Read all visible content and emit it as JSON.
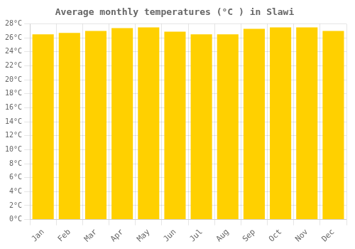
{
  "chart_data": {
    "type": "bar",
    "title": "Average monthly temperatures (°C ) in Slawi",
    "categories": [
      "Jan",
      "Feb",
      "Mar",
      "Apr",
      "May",
      "Jun",
      "Jul",
      "Aug",
      "Sep",
      "Oct",
      "Nov",
      "Dec"
    ],
    "values": [
      26.5,
      26.7,
      27.0,
      27.4,
      27.5,
      26.9,
      26.5,
      26.5,
      27.3,
      27.5,
      27.5,
      27.0
    ],
    "color": "#FFD000",
    "ylim": [
      0,
      28
    ],
    "yticks": [
      {
        "value": 0,
        "label": "0°C"
      },
      {
        "value": 2,
        "label": "2°C"
      },
      {
        "value": 4,
        "label": "4°C"
      },
      {
        "value": 6,
        "label": "6°C"
      },
      {
        "value": 8,
        "label": "8°C"
      },
      {
        "value": 10,
        "label": "10°C"
      },
      {
        "value": 12,
        "label": "12°C"
      },
      {
        "value": 14,
        "label": "14°C"
      },
      {
        "value": 16,
        "label": "16°C"
      },
      {
        "value": 18,
        "label": "18°C"
      },
      {
        "value": 20,
        "label": "20°C"
      },
      {
        "value": 22,
        "label": "22°C"
      },
      {
        "value": 24,
        "label": "24°C"
      },
      {
        "value": 26,
        "label": "26°C"
      },
      {
        "value": 28,
        "label": "28°C"
      }
    ],
    "grid": true
  }
}
